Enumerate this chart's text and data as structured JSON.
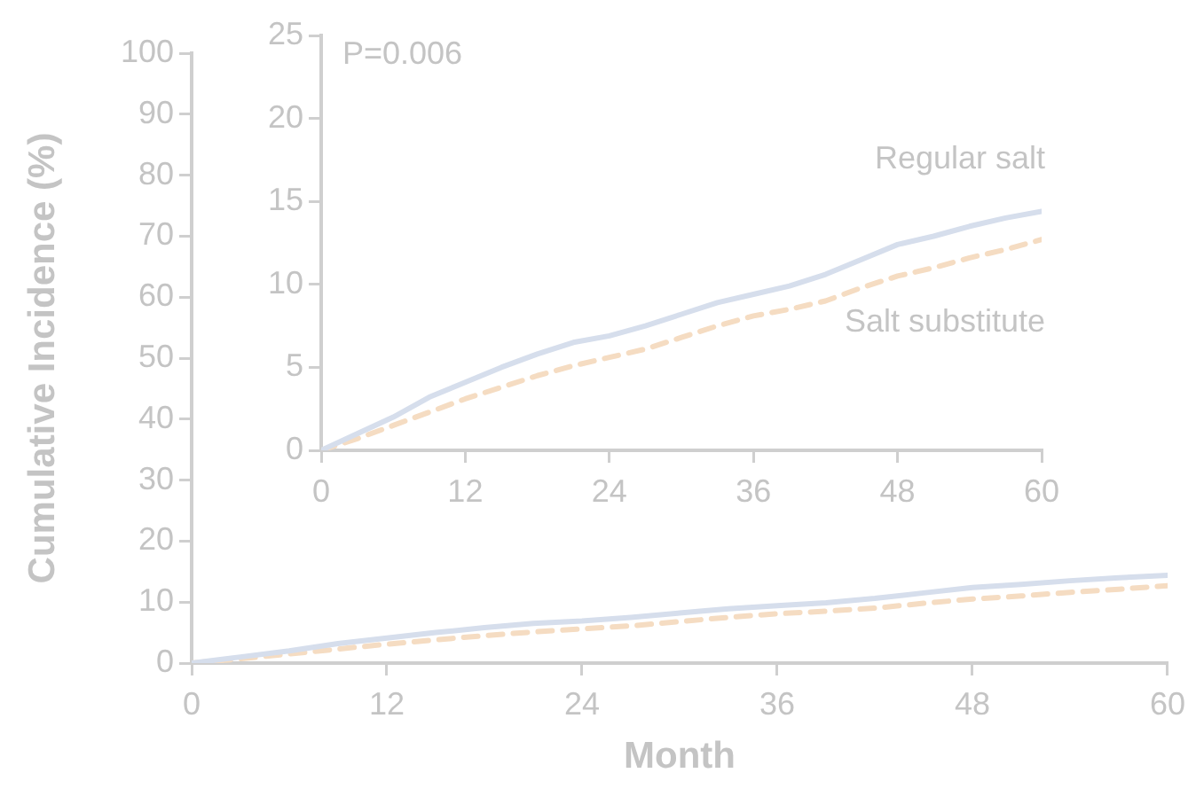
{
  "chart_data": [
    {
      "type": "line",
      "xlabel": "Month",
      "ylabel": "Cumulative Incidence (%)",
      "x": [
        0,
        3,
        6,
        9,
        12,
        15,
        18,
        21,
        24,
        27,
        30,
        33,
        36,
        39,
        42,
        45,
        48,
        51,
        54,
        57,
        60
      ],
      "xlim": [
        0,
        60
      ],
      "xticks": [
        0,
        12,
        24,
        36,
        48,
        60
      ],
      "ylim": [
        0,
        100
      ],
      "yticks": [
        0,
        10,
        20,
        30,
        40,
        50,
        60,
        70,
        80,
        90,
        100
      ],
      "grid": false,
      "legend": false,
      "marker": "none",
      "series": [
        {
          "color": "#d6deec",
          "line_style": "solid",
          "values": [
            0,
            1.0,
            2.0,
            3.2,
            4.1,
            5.0,
            5.8,
            6.5,
            6.9,
            7.5,
            8.2,
            8.9,
            9.4,
            9.9,
            10.6,
            11.5,
            12.4,
            12.9,
            13.5,
            14.0,
            14.4
          ]
        },
        {
          "color": "#f5dcc2",
          "line_style": "dashed",
          "values": [
            0,
            0.7,
            1.5,
            2.3,
            3.1,
            3.8,
            4.5,
            5.1,
            5.6,
            6.1,
            6.8,
            7.5,
            8.1,
            8.5,
            9.0,
            9.8,
            10.5,
            11.0,
            11.6,
            12.1,
            12.7
          ]
        }
      ]
    },
    {
      "type": "line",
      "annotations": [
        "P=0.006"
      ],
      "x": [
        0,
        3,
        6,
        9,
        12,
        15,
        18,
        21,
        24,
        27,
        30,
        33,
        36,
        39,
        42,
        45,
        48,
        51,
        54,
        57,
        60
      ],
      "xlim": [
        0,
        60
      ],
      "xticks": [
        0,
        12,
        24,
        36,
        48,
        60
      ],
      "ylim": [
        0,
        25
      ],
      "yticks": [
        0,
        5,
        10,
        15,
        20,
        25
      ],
      "grid": false,
      "legend": false,
      "marker": "none",
      "series": [
        {
          "name": "Regular salt",
          "color": "#d6deec",
          "line_style": "solid",
          "values": [
            0,
            1.0,
            2.0,
            3.2,
            4.1,
            5.0,
            5.8,
            6.5,
            6.9,
            7.5,
            8.2,
            8.9,
            9.4,
            9.9,
            10.6,
            11.5,
            12.4,
            12.9,
            13.5,
            14.0,
            14.4
          ]
        },
        {
          "name": "Salt substitute",
          "color": "#f5dcc2",
          "line_style": "dashed",
          "values": [
            0,
            0.7,
            1.5,
            2.3,
            3.1,
            3.8,
            4.5,
            5.1,
            5.6,
            6.1,
            6.8,
            7.5,
            8.1,
            8.5,
            9.0,
            9.8,
            10.5,
            11.0,
            11.6,
            12.1,
            12.7
          ]
        }
      ]
    }
  ]
}
